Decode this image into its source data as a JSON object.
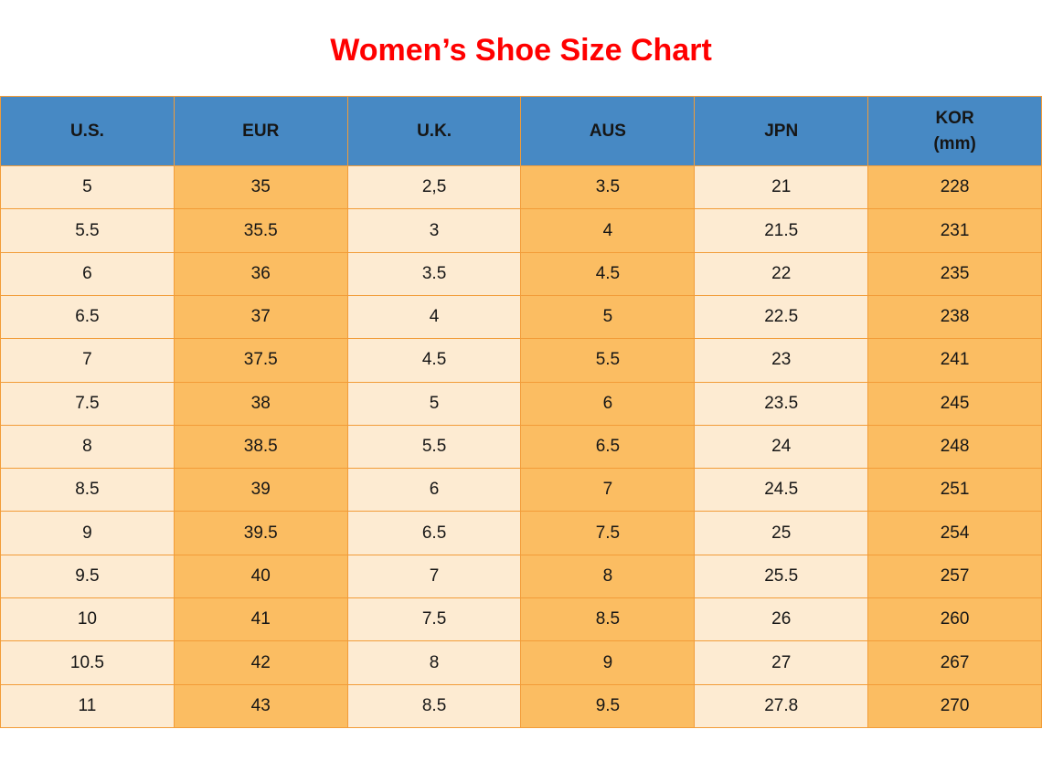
{
  "page": {
    "title": "Women’s Shoe Size Chart"
  },
  "colors": {
    "title_red": "#FF0000",
    "header_blue": "#4789C4",
    "cell_orange": "#FBBD62",
    "cell_cream": "#FDEBD2",
    "grid_orange": "#F29C38",
    "text_black": "#161616"
  },
  "chart_data": {
    "type": "table",
    "title": "Women’s Shoe Size Chart",
    "columns": [
      {
        "label": "U.S."
      },
      {
        "label": "EUR"
      },
      {
        "label": "U.K."
      },
      {
        "label": "AUS"
      },
      {
        "label": "JPN"
      },
      {
        "label": "KOR",
        "sublabel": "(mm)"
      }
    ],
    "rows": [
      [
        "5",
        "35",
        "2,5",
        "3.5",
        "21",
        "228"
      ],
      [
        "5.5",
        "35.5",
        "3",
        "4",
        "21.5",
        "231"
      ],
      [
        "6",
        "36",
        "3.5",
        "4.5",
        "22",
        "235"
      ],
      [
        "6.5",
        "37",
        "4",
        "5",
        "22.5",
        "238"
      ],
      [
        "7",
        "37.5",
        "4.5",
        "5.5",
        "23",
        "241"
      ],
      [
        "7.5",
        "38",
        "5",
        "6",
        "23.5",
        "245"
      ],
      [
        "8",
        "38.5",
        "5.5",
        "6.5",
        "24",
        "248"
      ],
      [
        "8.5",
        "39",
        "6",
        "7",
        "24.5",
        "251"
      ],
      [
        "9",
        "39.5",
        "6.5",
        "7.5",
        "25",
        "254"
      ],
      [
        "9.5",
        "40",
        "7",
        "8",
        "25.5",
        "257"
      ],
      [
        "10",
        "41",
        "7.5",
        "8.5",
        "26",
        "260"
      ],
      [
        "10.5",
        "42",
        "8",
        "9",
        "27",
        "267"
      ],
      [
        "11",
        "43",
        "8.5",
        "9.5",
        "27.8",
        "270"
      ]
    ]
  }
}
